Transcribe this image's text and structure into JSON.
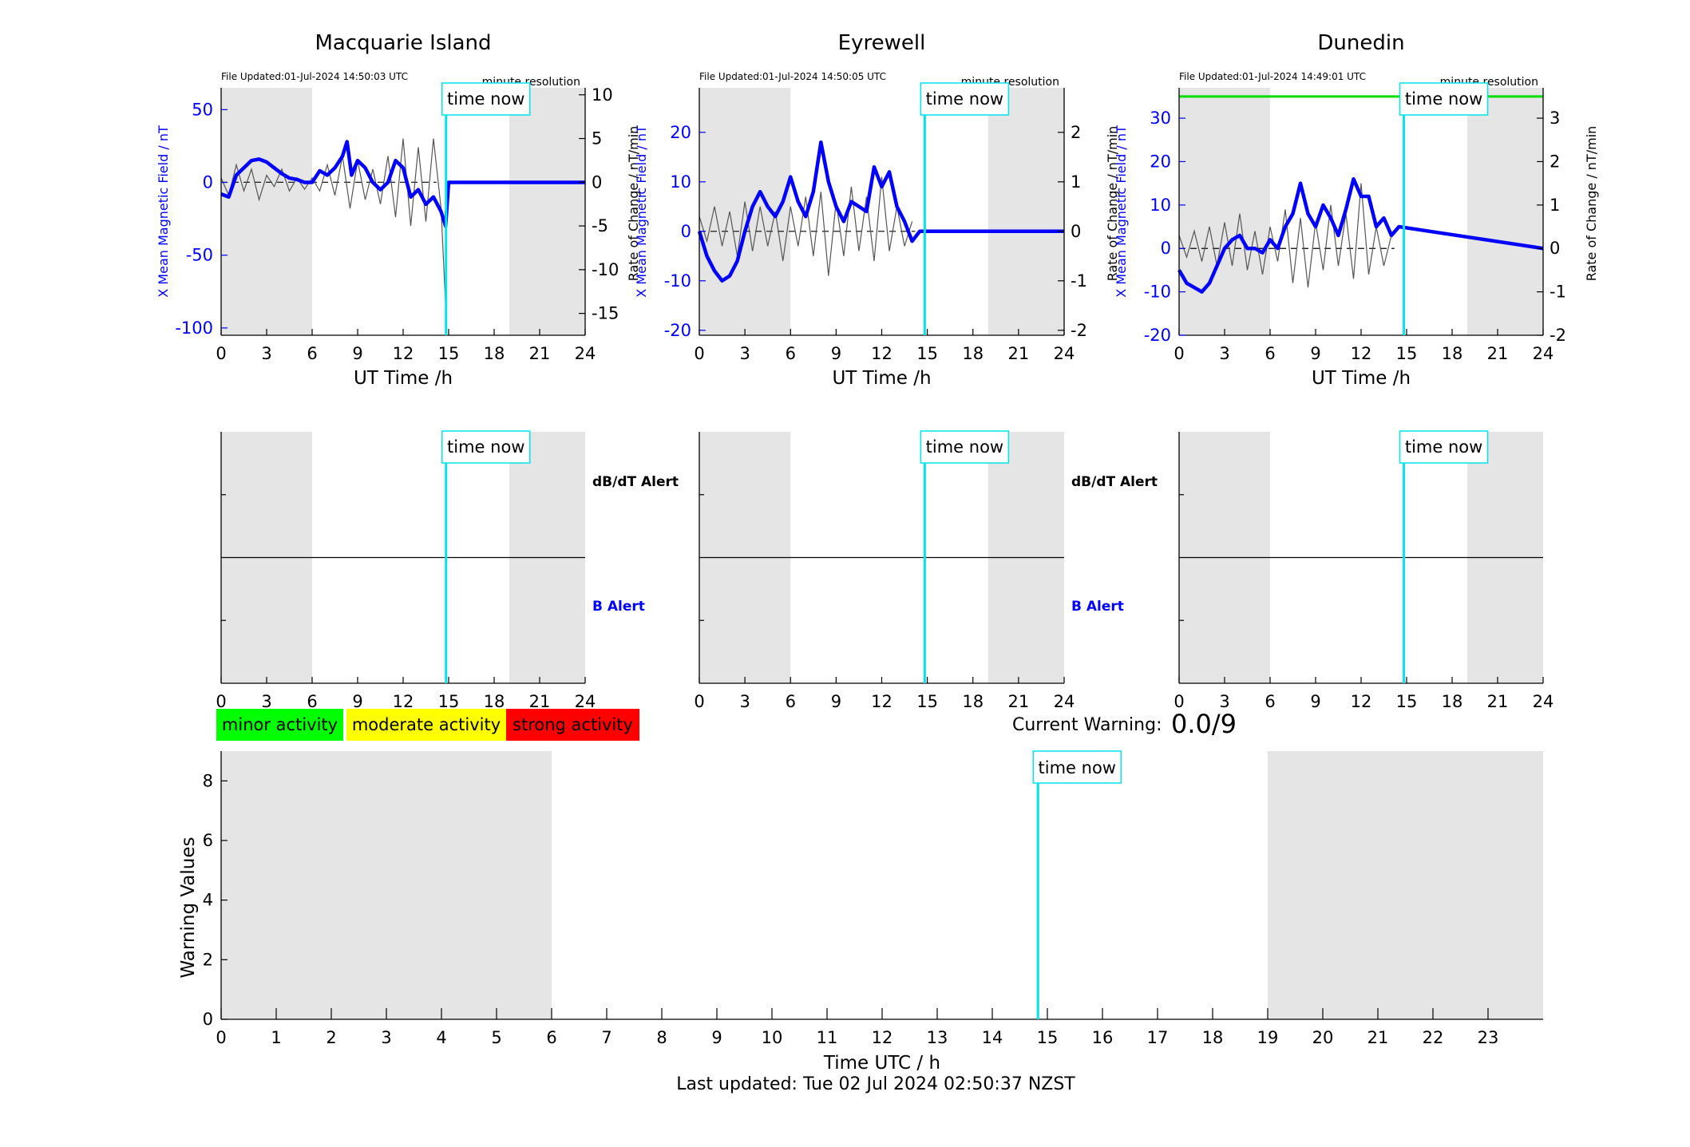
{
  "stations": [
    {
      "name": "Macquarie Island",
      "file_updated": "File Updated:01-Jul-2024 14:50:03 UTC",
      "resolution": "minute resolution",
      "time_now_label": "time now",
      "left_axis_label": "X Mean Magnetic Field / nT",
      "right_axis_label": "Rate of Change / nT/min",
      "x_label": "UT Time /h",
      "alert_top_label": "dB/dT Alert",
      "alert_bottom_label": "B Alert",
      "left_ticks": [
        "50",
        "0",
        "-50",
        "-100"
      ],
      "right_ticks": [
        "10",
        "5",
        "0",
        "-5",
        "-10",
        "-15"
      ],
      "x_ticks": [
        "0",
        "3",
        "6",
        "9",
        "12",
        "15",
        "18",
        "21",
        "24"
      ]
    },
    {
      "name": "Eyrewell",
      "file_updated": "File Updated:01-Jul-2024 14:50:05 UTC",
      "resolution": "minute resolution",
      "time_now_label": "time now",
      "left_axis_label": "X Mean Magnetic Field / nT",
      "right_axis_label": "Rate of Change / nT/min",
      "x_label": "UT Time /h",
      "alert_top_label": "dB/dT Alert",
      "alert_bottom_label": "B Alert",
      "left_ticks": [
        "20",
        "10",
        "0",
        "-10",
        "-20"
      ],
      "right_ticks": [
        "2",
        "1",
        "0",
        "-1",
        "-2"
      ],
      "x_ticks": [
        "0",
        "3",
        "6",
        "9",
        "12",
        "15",
        "18",
        "21",
        "24"
      ]
    },
    {
      "name": "Dunedin",
      "file_updated": "File Updated:01-Jul-2024 14:49:01 UTC",
      "resolution": "minute resolution",
      "time_now_label": "time now",
      "left_axis_label": "X Mean Magnetic Field / nT",
      "right_axis_label": "Rate of Change / nT/min",
      "x_label": "UT Time /h",
      "left_ticks": [
        "30",
        "20",
        "10",
        "0",
        "-10",
        "-20"
      ],
      "right_ticks": [
        "3",
        "2",
        "1",
        "0",
        "-1",
        "-2"
      ],
      "x_ticks": [
        "0",
        "3",
        "6",
        "9",
        "12",
        "15",
        "18",
        "21",
        "24"
      ]
    }
  ],
  "legend": {
    "minor": "minor activity",
    "moderate": "moderate activity",
    "strong": "strong activity",
    "minor_color": "#00ff00",
    "moderate_color": "#ffff00",
    "strong_color": "#ff0000"
  },
  "current_warning": {
    "label": "Current Warning:",
    "value": "0.0/9"
  },
  "warning_panel": {
    "ylabel": "Warning Values",
    "xlabel": "Time UTC / h",
    "time_now_label": "time now",
    "y_ticks": [
      "0",
      "2",
      "4",
      "6",
      "8"
    ],
    "x_ticks": [
      "0",
      "1",
      "2",
      "3",
      "4",
      "5",
      "6",
      "7",
      "8",
      "9",
      "10",
      "11",
      "12",
      "13",
      "14",
      "15",
      "16",
      "17",
      "18",
      "19",
      "20",
      "21",
      "22",
      "23"
    ]
  },
  "footer": {
    "last_updated": "Last updated: Tue 02 Jul 2024 02:50:37 NZST"
  },
  "colors": {
    "field_line": "#0000ff",
    "rate_line": "#555555",
    "time_now_line": "#00e5ee",
    "night_shade": "#e5e5e5",
    "threshold_line": "#00dd00"
  },
  "chart_data": [
    {
      "type": "line",
      "title": "Macquarie Island",
      "xlabel": "UT Time /h",
      "ylabel": "X Mean Magnetic Field / nT",
      "y2label": "Rate of Change / nT/min",
      "xlim": [
        0,
        24
      ],
      "ylim": [
        -105,
        65
      ],
      "y2lim": [
        -17.5,
        10.8
      ],
      "shaded_x": [
        [
          0,
          6
        ],
        [
          19,
          24
        ]
      ],
      "time_now": 14.83,
      "series": [
        {
          "name": "X Mean Magnetic Field",
          "axis": "left",
          "x": [
            0,
            0.5,
            1,
            1.5,
            2,
            2.5,
            3,
            3.5,
            4,
            4.5,
            5,
            5.5,
            6,
            6.5,
            7,
            7.5,
            8,
            8.3,
            8.6,
            9,
            9.5,
            10,
            10.5,
            11,
            11.5,
            12,
            12.5,
            13,
            13.5,
            14,
            14.5,
            14.8,
            15,
            24
          ],
          "y": [
            -8,
            -10,
            5,
            10,
            15,
            16,
            14,
            10,
            6,
            3,
            2,
            0,
            0,
            8,
            5,
            10,
            18,
            28,
            5,
            15,
            10,
            0,
            -5,
            0,
            15,
            10,
            -10,
            -5,
            -15,
            -10,
            -20,
            -30,
            0,
            0
          ]
        },
        {
          "name": "Rate of Change",
          "axis": "right",
          "x": [
            0,
            0.5,
            1,
            1.5,
            2,
            2.5,
            3,
            3.5,
            4,
            4.5,
            5,
            5.5,
            6,
            6.5,
            7,
            7.5,
            8,
            8.5,
            9,
            9.5,
            10,
            10.5,
            11,
            11.5,
            12,
            12.5,
            13,
            13.5,
            14,
            14.5,
            14.8
          ],
          "y": [
            0.5,
            -1.5,
            2,
            -1,
            1.5,
            -2,
            0.8,
            -0.5,
            1.5,
            -1,
            0.5,
            -0.8,
            0.5,
            -1,
            2,
            -1.5,
            3,
            -3,
            2.5,
            -2,
            1.5,
            -2.5,
            3,
            -4,
            5,
            -5,
            4,
            -4.5,
            5,
            -3,
            -14
          ]
        }
      ]
    },
    {
      "type": "line",
      "title": "Eyrewell",
      "xlabel": "UT Time /h",
      "ylabel": "X Mean Magnetic Field / nT",
      "y2label": "Rate of Change / nT/min",
      "xlim": [
        0,
        24
      ],
      "ylim": [
        -21,
        29
      ],
      "y2lim": [
        -2.1,
        2.9
      ],
      "shaded_x": [
        [
          0,
          6
        ],
        [
          19,
          24
        ]
      ],
      "time_now": 14.83,
      "series": [
        {
          "name": "X Mean Magnetic Field",
          "axis": "left",
          "x": [
            0,
            0.5,
            1,
            1.5,
            2,
            2.5,
            3,
            3.5,
            4,
            4.5,
            5,
            5.5,
            6,
            6.5,
            7,
            7.5,
            8,
            8.5,
            9,
            9.5,
            10,
            10.5,
            11,
            11.5,
            12,
            12.5,
            13,
            13.5,
            14,
            14.5,
            24
          ],
          "y": [
            0,
            -5,
            -8,
            -10,
            -9,
            -6,
            0,
            5,
            8,
            5,
            3,
            6,
            11,
            6,
            3,
            8,
            18,
            10,
            5,
            2,
            6,
            5,
            4,
            13,
            9,
            12,
            5,
            2,
            -2,
            0,
            0
          ]
        },
        {
          "name": "Rate of Change",
          "axis": "right",
          "x": [
            0,
            0.5,
            1,
            1.5,
            2,
            2.5,
            3,
            3.5,
            4,
            4.5,
            5,
            5.5,
            6,
            6.5,
            7,
            7.5,
            8,
            8.5,
            9,
            9.5,
            10,
            10.5,
            11,
            11.5,
            12,
            12.5,
            13,
            13.5,
            14
          ],
          "y": [
            0.3,
            -0.2,
            0.5,
            -0.3,
            0.4,
            -0.5,
            0.6,
            -0.4,
            0.5,
            -0.3,
            0.4,
            -0.6,
            0.5,
            -0.3,
            0.7,
            -0.5,
            0.8,
            -0.9,
            0.6,
            -0.5,
            0.9,
            -0.4,
            0.7,
            -0.6,
            1.1,
            -0.4,
            0.5,
            -0.3,
            0.2
          ]
        }
      ]
    },
    {
      "type": "line",
      "title": "Dunedin",
      "xlabel": "UT Time /h",
      "ylabel": "X Mean Magnetic Field / nT",
      "y2label": "Rate of Change / nT/min",
      "xlim": [
        0,
        24
      ],
      "ylim": [
        -20,
        37
      ],
      "y2lim": [
        -2,
        3.7
      ],
      "shaded_x": [
        [
          0,
          6
        ],
        [
          19,
          24
        ]
      ],
      "time_now": 14.82,
      "threshold": 35,
      "series": [
        {
          "name": "X Mean Magnetic Field",
          "axis": "left",
          "x": [
            0,
            0.5,
            1,
            1.5,
            2,
            2.5,
            3,
            3.5,
            4,
            4.5,
            5,
            5.5,
            6,
            6.5,
            7,
            7.5,
            8,
            8.5,
            9,
            9.5,
            10,
            10.5,
            11,
            11.5,
            12,
            12.5,
            13,
            13.5,
            14,
            14.5,
            24
          ],
          "y": [
            -5,
            -8,
            -9,
            -10,
            -8,
            -4,
            0,
            2,
            3,
            0,
            0,
            -1,
            2,
            0,
            5,
            8,
            15,
            8,
            5,
            10,
            7,
            3,
            9,
            16,
            12,
            12,
            5,
            7,
            3,
            5,
            0
          ]
        },
        {
          "name": "Rate of Change",
          "axis": "right",
          "x": [
            0,
            0.5,
            1,
            1.5,
            2,
            2.5,
            3,
            3.5,
            4,
            4.5,
            5,
            5.5,
            6,
            6.5,
            7,
            7.5,
            8,
            8.5,
            9,
            9.5,
            10,
            10.5,
            11,
            11.5,
            12,
            12.5,
            13,
            13.5,
            14
          ],
          "y": [
            0.3,
            -0.2,
            0.4,
            -0.3,
            0.5,
            -0.4,
            0.6,
            -0.4,
            0.8,
            -0.5,
            0.4,
            -0.6,
            0.5,
            -0.3,
            0.9,
            -0.8,
            0.7,
            -0.9,
            0.6,
            -0.5,
            1,
            -0.4,
            0.8,
            -0.7,
            1.5,
            -0.6,
            0.5,
            -0.4,
            0.3
          ]
        }
      ]
    },
    {
      "type": "line",
      "title": "",
      "xlabel": "Time UTC / h",
      "ylabel": "Warning Values",
      "xlim": [
        0,
        24
      ],
      "ylim": [
        0,
        9
      ],
      "shaded_x": [
        [
          0,
          6
        ],
        [
          19,
          24
        ]
      ],
      "time_now": 14.83,
      "series": [
        {
          "x": [
            0,
            24
          ],
          "y": [
            0,
            0
          ]
        }
      ]
    }
  ]
}
